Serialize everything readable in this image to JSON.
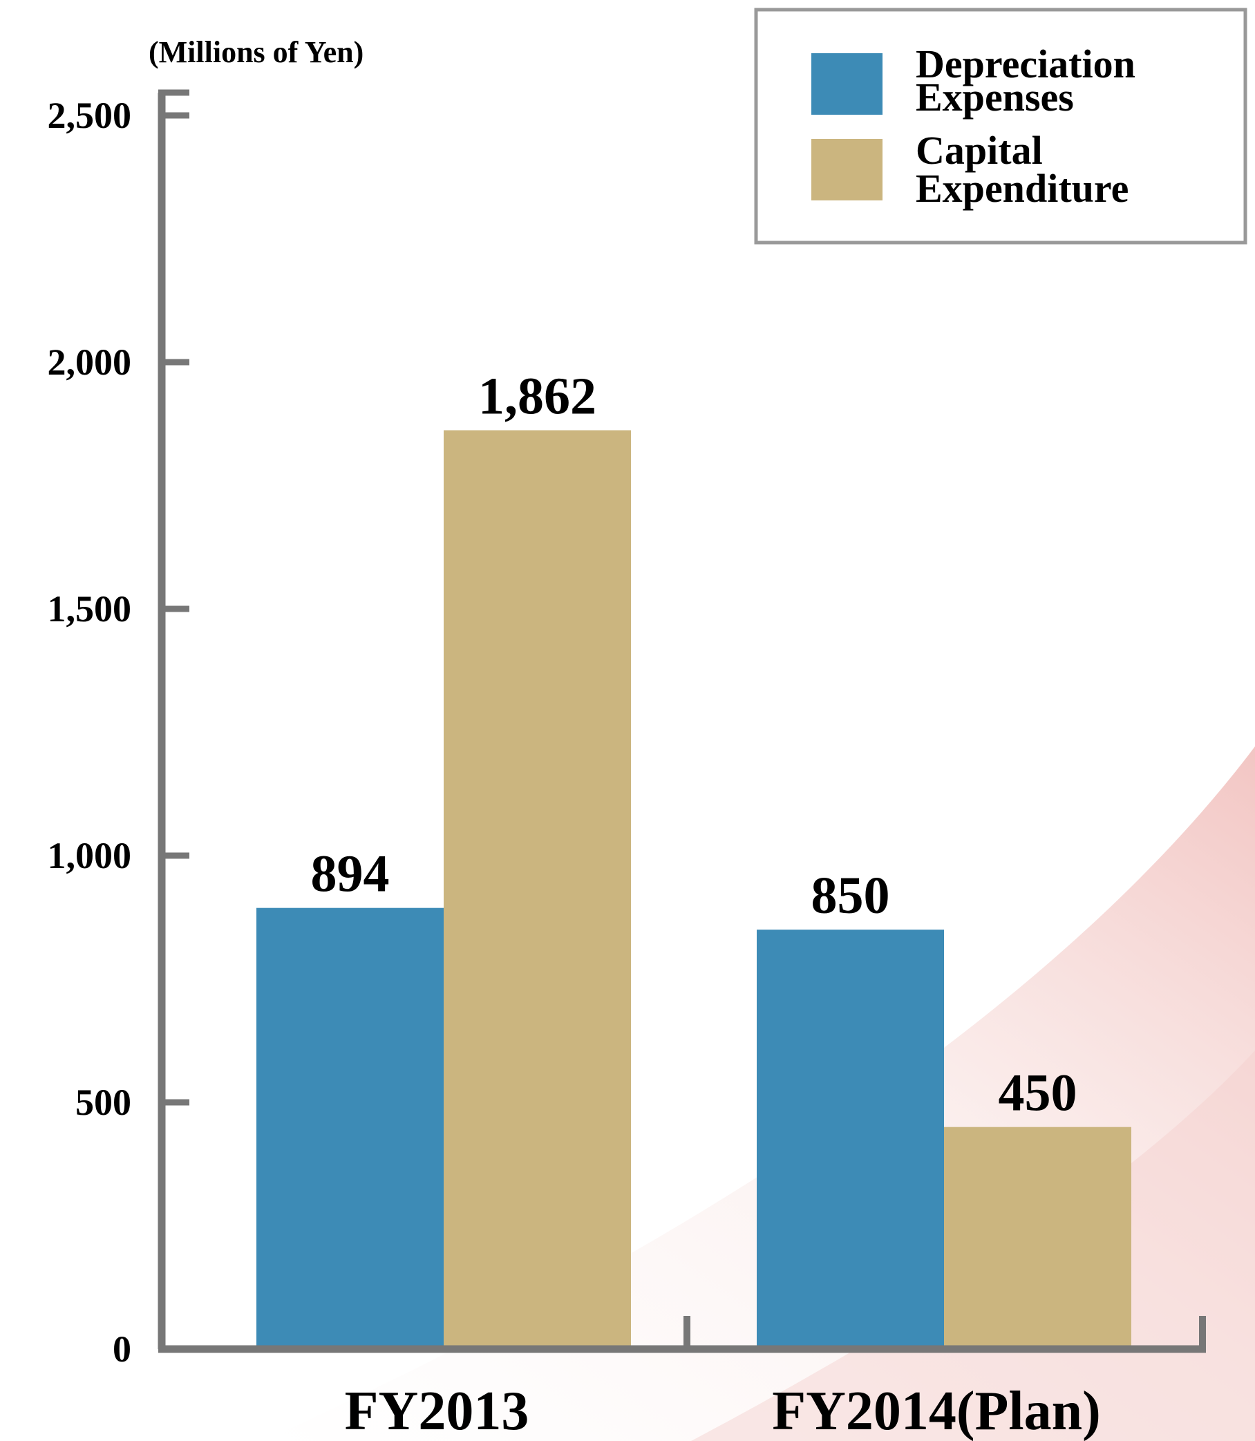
{
  "chart_data": {
    "type": "bar",
    "unit_label": "(Millions of Yen)",
    "categories": [
      "FY2013",
      "FY2014(Plan)"
    ],
    "series": [
      {
        "name": "Depreciation Expenses",
        "name_lines": [
          "Depreciation",
          "Expenses"
        ],
        "color": "#3d8bb6",
        "values": [
          894,
          850
        ],
        "labels": [
          "894",
          "850"
        ]
      },
      {
        "name": "Capital Expenditure",
        "name_lines": [
          "Capital",
          "Expenditure"
        ],
        "color": "#cbb57f",
        "values": [
          1862,
          450
        ],
        "labels": [
          "1,862",
          "450"
        ]
      }
    ],
    "ylim": [
      0,
      2500
    ],
    "yticks": [
      0,
      500,
      1000,
      1500,
      2000,
      2500
    ],
    "ytick_labels": [
      "0",
      "500",
      "1,000",
      "1,500",
      "2,000",
      "2,500"
    ],
    "grid": false,
    "legend_position": "top-right",
    "axis_color": "#777777",
    "legend_border_color": "#999999"
  }
}
